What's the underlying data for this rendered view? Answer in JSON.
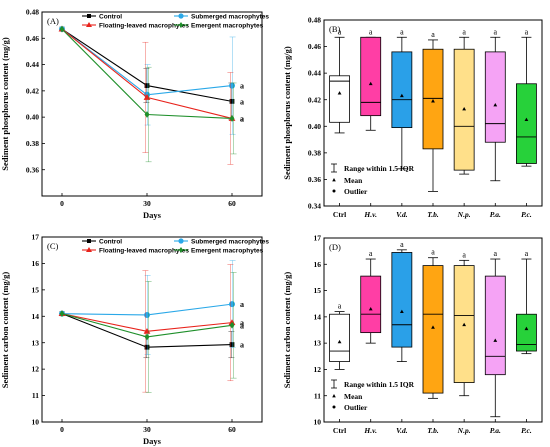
{
  "chart_data": [
    {
      "panel": "(A)",
      "type": "line",
      "xlabel": "Days",
      "ylabel": "Sediment phosphorus content (mg/g)",
      "x": [
        0,
        30,
        60
      ],
      "x_ticks": [
        "0",
        "30",
        "60"
      ],
      "ylim": [
        0.34,
        0.48
      ],
      "y_ticks": [
        "0.36",
        "0.38",
        "0.40",
        "0.42",
        "0.44",
        "0.46",
        "0.48"
      ],
      "legend": "top",
      "series": [
        {
          "name": "Control",
          "color": "#000000",
          "marker": "square",
          "values": [
            0.467,
            0.424,
            0.412
          ],
          "err": [
            0,
            0.013,
            0.014
          ],
          "sig": "a"
        },
        {
          "name": "Submerged macrophytes",
          "color": "#2aa8e8",
          "marker": "circle",
          "values": [
            0.467,
            0.417,
            0.424
          ],
          "err": [
            0,
            0.023,
            0.037
          ],
          "sig": "a"
        },
        {
          "name": "Floating-leaved macrophytes",
          "color": "#e8231c",
          "marker": "triangle",
          "values": [
            0.467,
            0.415,
            0.399
          ],
          "err": [
            0,
            0.042,
            0.035
          ],
          "sig": "a"
        },
        {
          "name": "Emergent macrophytes",
          "color": "#1e8f2a",
          "marker": "diamond",
          "values": [
            0.467,
            0.402,
            0.399
          ],
          "err": [
            0,
            0.036,
            0.027
          ],
          "sig": "a"
        }
      ]
    },
    {
      "panel": "(B)",
      "type": "box",
      "ylabel": "Sediment phosphorus content (mg/g)",
      "categories": [
        "Ctrl",
        "H.v.",
        "V.d.",
        "T.b.",
        "N.p.",
        "P.a.",
        "P.c."
      ],
      "ylim": [
        0.34,
        0.48
      ],
      "y_ticks": [
        "0.34",
        "0.36",
        "0.38",
        "0.40",
        "0.42",
        "0.44",
        "0.46",
        "0.48"
      ],
      "legend_items": [
        "Range within 1.5 IQR",
        "Mean",
        "Outlier"
      ],
      "boxes": [
        {
          "color": "#ffffff",
          "whisker_low": 0.395,
          "q1": 0.403,
          "median": 0.434,
          "q3": 0.438,
          "whisker_high": 0.467,
          "mean": 0.425,
          "sig": "a"
        },
        {
          "color": "#ff3ea5",
          "whisker_low": 0.397,
          "q1": 0.408,
          "median": 0.418,
          "q3": 0.467,
          "whisker_high": 0.467,
          "mean": 0.432,
          "sig": "a"
        },
        {
          "color": "#2aa0e8",
          "whisker_low": 0.368,
          "q1": 0.399,
          "median": 0.42,
          "q3": 0.456,
          "whisker_high": 0.467,
          "mean": 0.423,
          "sig": "a"
        },
        {
          "color": "#ffa512",
          "whisker_low": 0.351,
          "q1": 0.383,
          "median": 0.421,
          "q3": 0.458,
          "whisker_high": 0.465,
          "mean": 0.419,
          "sig": "a"
        },
        {
          "color": "#ffe08a",
          "whisker_low": 0.364,
          "q1": 0.367,
          "median": 0.4,
          "q3": 0.458,
          "whisker_high": 0.467,
          "mean": 0.413,
          "sig": "a"
        },
        {
          "color": "#f5a3f5",
          "whisker_low": 0.359,
          "q1": 0.388,
          "median": 0.402,
          "q3": 0.456,
          "whisker_high": 0.467,
          "mean": 0.416,
          "sig": "a"
        },
        {
          "color": "#27d13a",
          "whisker_low": 0.37,
          "q1": 0.372,
          "median": 0.392,
          "q3": 0.432,
          "whisker_high": 0.467,
          "mean": 0.405,
          "sig": "a"
        }
      ]
    },
    {
      "panel": "(C)",
      "type": "line",
      "xlabel": "Days",
      "ylabel": "Sediment carbon content (mg/g)",
      "x": [
        0,
        30,
        60
      ],
      "x_ticks": [
        "0",
        "30",
        "60"
      ],
      "ylim": [
        10,
        17
      ],
      "y_ticks": [
        "10",
        "11",
        "12",
        "13",
        "14",
        "15",
        "16",
        "17"
      ],
      "legend": "top",
      "series": [
        {
          "name": "Control",
          "color": "#000000",
          "marker": "square",
          "values": [
            14.1,
            12.83,
            12.93
          ],
          "err": [
            0,
            0.4,
            0.5
          ],
          "sig": "a"
        },
        {
          "name": "Submerged macrophytes",
          "color": "#2aa8e8",
          "marker": "circle",
          "values": [
            14.1,
            14.05,
            14.46
          ],
          "err": [
            0,
            1.5,
            1.65
          ],
          "sig": "a"
        },
        {
          "name": "Floating-leaved macrophytes",
          "color": "#e8231c",
          "marker": "triangle",
          "values": [
            14.1,
            13.43,
            13.76
          ],
          "err": [
            0,
            2.3,
            2.2
          ],
          "sig": "a"
        },
        {
          "name": "Emergent macrophytes",
          "color": "#1e8f2a",
          "marker": "diamond",
          "values": [
            14.1,
            13.22,
            13.66
          ],
          "err": [
            0,
            2.1,
            2.0
          ],
          "sig": "a"
        }
      ]
    },
    {
      "panel": "(D)",
      "type": "box",
      "ylabel": "Sediment carbon content (mg/g)",
      "categories": [
        "Ctrl",
        "H.v.",
        "V.d.",
        "T.b.",
        "N.p.",
        "P.a.",
        "P.c."
      ],
      "ylim": [
        10,
        17
      ],
      "y_ticks": [
        "10",
        "11",
        "12",
        "13",
        "14",
        "15",
        "16",
        "17"
      ],
      "legend_items": [
        "Range within 1.5 IQR",
        "Mean",
        "Outlier"
      ],
      "boxes": [
        {
          "color": "#ffffff",
          "whisker_low": 12.0,
          "q1": 12.3,
          "median": 12.7,
          "q3": 14.1,
          "whisker_high": 14.2,
          "mean": 13.05,
          "sig": "a"
        },
        {
          "color": "#ff3ea5",
          "whisker_low": 13.0,
          "q1": 13.4,
          "median": 14.1,
          "q3": 15.55,
          "whisker_high": 16.2,
          "mean": 14.3,
          "sig": "a"
        },
        {
          "color": "#2aa0e8",
          "whisker_low": 12.3,
          "q1": 12.85,
          "median": 13.7,
          "q3": 16.45,
          "whisker_high": 16.55,
          "mean": 14.2,
          "sig": "a"
        },
        {
          "color": "#ffa512",
          "whisker_low": 10.9,
          "q1": 11.1,
          "median": 14.1,
          "q3": 15.95,
          "whisker_high": 16.25,
          "mean": 13.6,
          "sig": "a"
        },
        {
          "color": "#ffe08a",
          "whisker_low": 11.0,
          "q1": 11.5,
          "median": 14.05,
          "q3": 15.95,
          "whisker_high": 16.15,
          "mean": 13.7,
          "sig": "a"
        },
        {
          "color": "#f5a3f5",
          "whisker_low": 10.2,
          "q1": 11.8,
          "median": 12.5,
          "q3": 15.55,
          "whisker_high": 16.2,
          "mean": 13.1,
          "sig": "a"
        },
        {
          "color": "#27d13a",
          "whisker_low": 12.6,
          "q1": 12.7,
          "median": 12.95,
          "q3": 14.1,
          "whisker_high": 16.2,
          "mean": 13.55,
          "sig": "a"
        }
      ]
    }
  ]
}
